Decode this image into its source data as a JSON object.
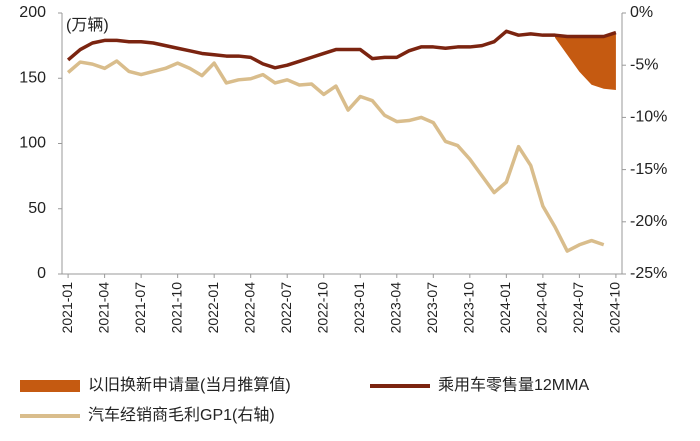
{
  "chart_data": {
    "type": "combo",
    "y_label": "(万辆)",
    "categories": [
      "2021-01",
      null,
      null,
      "2021-04",
      null,
      null,
      "2021-07",
      null,
      null,
      "2021-10",
      null,
      null,
      "2022-01",
      null,
      null,
      "2022-04",
      null,
      null,
      "2022-07",
      null,
      null,
      "2022-10",
      null,
      null,
      "2023-01",
      null,
      null,
      "2023-04",
      null,
      null,
      "2023-07",
      null,
      null,
      "2023-10",
      null,
      null,
      "2024-01",
      null,
      null,
      "2024-04",
      null,
      null,
      "2024-07",
      null,
      null,
      "2024-10"
    ],
    "ylim": [
      0,
      200
    ],
    "yticks": [
      0,
      50,
      100,
      150,
      200
    ],
    "y2lim": [
      -25,
      0
    ],
    "y2ticks": [
      {
        "value": 0,
        "label": "0%"
      },
      {
        "value": -5,
        "label": "-5%"
      },
      {
        "value": -10,
        "label": "-10%"
      },
      {
        "value": -15,
        "label": "-15%"
      },
      {
        "value": -20,
        "label": "-20%"
      },
      {
        "value": -25,
        "label": "-25%"
      }
    ],
    "series": [
      {
        "name": "以旧换新申请量(当月推算值)",
        "type": "area",
        "color": "#C55A11",
        "values": [
          null,
          null,
          null,
          null,
          null,
          null,
          null,
          null,
          null,
          null,
          null,
          null,
          null,
          null,
          null,
          null,
          null,
          null,
          null,
          null,
          null,
          null,
          null,
          null,
          null,
          null,
          null,
          null,
          null,
          null,
          null,
          null,
          null,
          null,
          null,
          null,
          null,
          null,
          null,
          null,
          2,
          14,
          27,
          37,
          40,
          44
        ]
      },
      {
        "name": "乘用车零售量12MMA",
        "type": "line",
        "color": "#7B2410",
        "values": [
          164,
          172,
          177,
          179,
          179,
          178,
          178,
          177,
          175,
          173,
          171,
          169,
          168,
          167,
          167,
          166,
          161,
          158,
          160,
          163,
          166,
          169,
          172,
          172,
          172,
          165,
          166,
          166,
          171,
          174,
          174,
          173,
          174,
          174,
          175,
          178,
          186,
          183,
          184,
          183,
          183,
          182,
          182,
          182,
          182,
          185
        ]
      },
      {
        "name": "汽车经销商毛利GP1(右轴)",
        "type": "line",
        "color": "#D9BD8C",
        "axis": "y2",
        "values": [
          -5.7,
          -4.7,
          -4.9,
          -5.3,
          -4.6,
          -5.6,
          -5.9,
          -5.6,
          -5.3,
          -4.8,
          -5.3,
          -6.0,
          -4.8,
          -6.7,
          -6.4,
          -6.3,
          -5.9,
          -6.7,
          -6.4,
          -6.9,
          -6.8,
          -7.8,
          -7.0,
          -9.3,
          -8.0,
          -8.4,
          -9.8,
          -10.4,
          -10.3,
          -10.0,
          -10.5,
          -12.3,
          -12.7,
          -14.0,
          -15.6,
          -17.2,
          -16.2,
          -12.8,
          -14.6,
          -18.5,
          -20.5,
          -22.8,
          -22.2,
          -21.8,
          -22.2,
          null
        ]
      }
    ]
  }
}
